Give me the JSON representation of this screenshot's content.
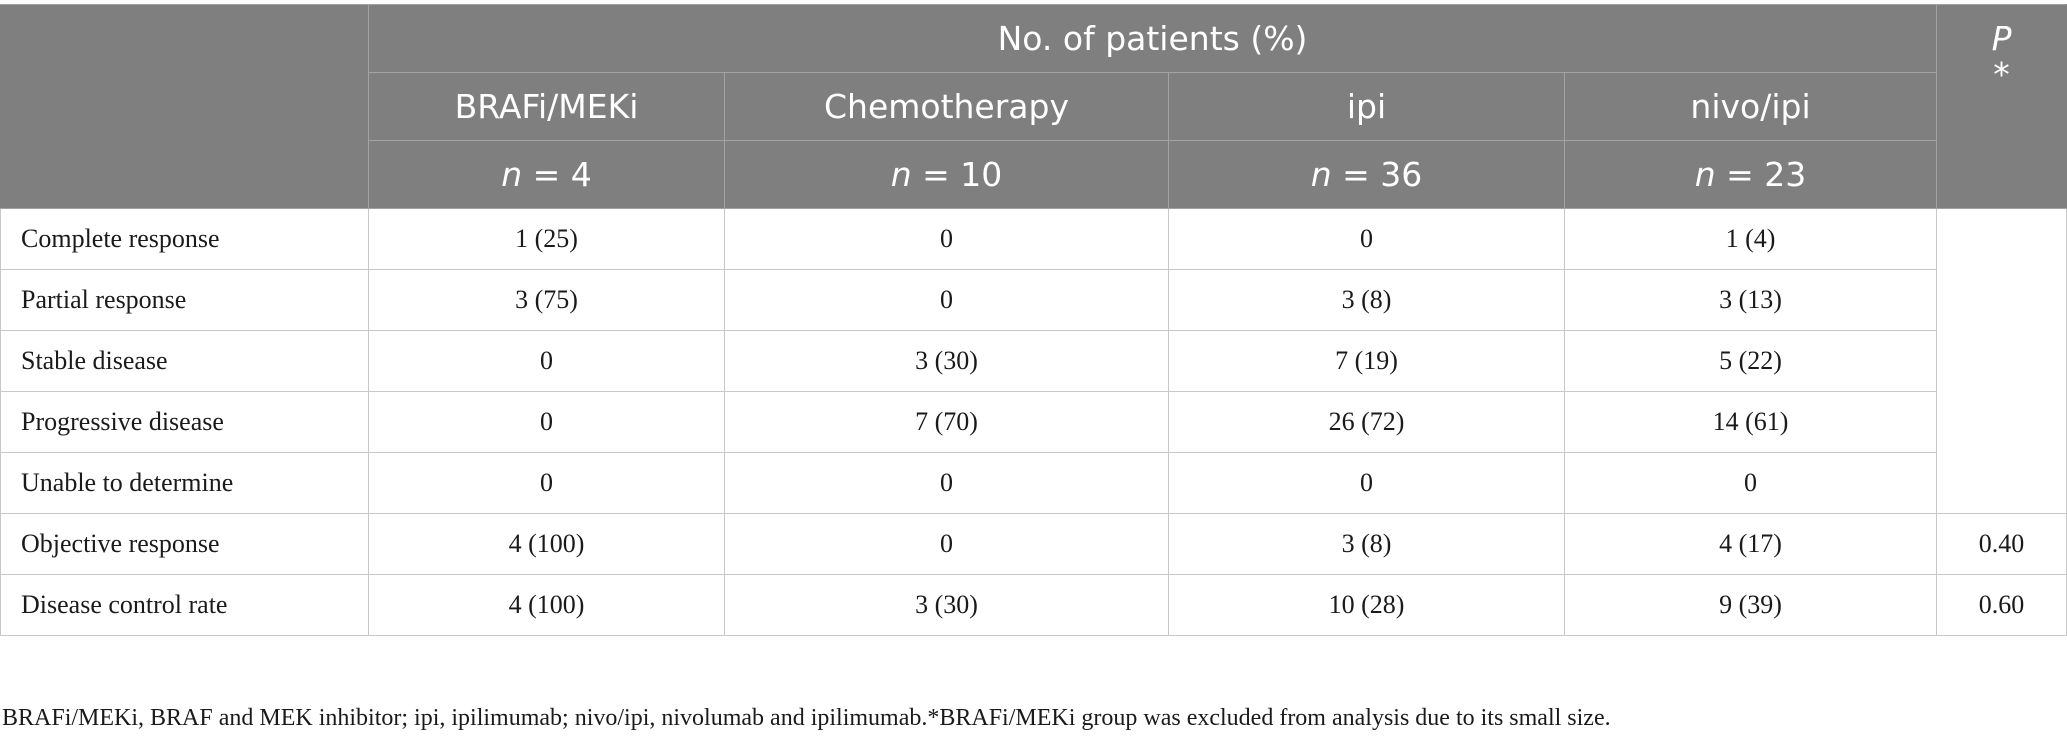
{
  "header": {
    "spanning_label": "No. of patients (%)",
    "p_label": "P",
    "p_marker": "*",
    "groups": [
      {
        "name": "BRAFi/MEKi",
        "n_prefix": "n",
        "n_value": "= 4"
      },
      {
        "name": "Chemotherapy",
        "n_prefix": "n",
        "n_value": "= 10"
      },
      {
        "name": "ipi",
        "n_prefix": "n",
        "n_value": "= 36"
      },
      {
        "name": "nivo/ipi",
        "n_prefix": "n",
        "n_value": "= 23"
      }
    ]
  },
  "rows": [
    {
      "label": "Complete response",
      "values": [
        "1 (25)",
        "0",
        "0",
        "1 (4)"
      ],
      "p": ""
    },
    {
      "label": "Partial response",
      "values": [
        "3 (75)",
        "0",
        "3 (8)",
        "3 (13)"
      ],
      "p": ""
    },
    {
      "label": "Stable disease",
      "values": [
        "0",
        "3 (30)",
        "7 (19)",
        "5 (22)"
      ],
      "p": ""
    },
    {
      "label": "Progressive disease",
      "values": [
        "0",
        "7 (70)",
        "26 (72)",
        "14 (61)"
      ],
      "p": ""
    },
    {
      "label": "Unable to determine",
      "values": [
        "0",
        "0",
        "0",
        "0"
      ],
      "p": ""
    },
    {
      "label": "Objective response",
      "values": [
        "4 (100)",
        "0",
        "3 (8)",
        "4 (17)"
      ],
      "p": "0.40"
    },
    {
      "label": "Disease control rate",
      "values": [
        "4 (100)",
        "3 (30)",
        "10 (28)",
        "9 (39)"
      ],
      "p": "0.60"
    }
  ],
  "footnote": "BRAFi/MEKi, BRAF and MEK inhibitor; ipi, ipilimumab; nivo/ipi, nivolumab and ipilimumab.*BRAFi/MEKi group was excluded from analysis due to its small size."
}
